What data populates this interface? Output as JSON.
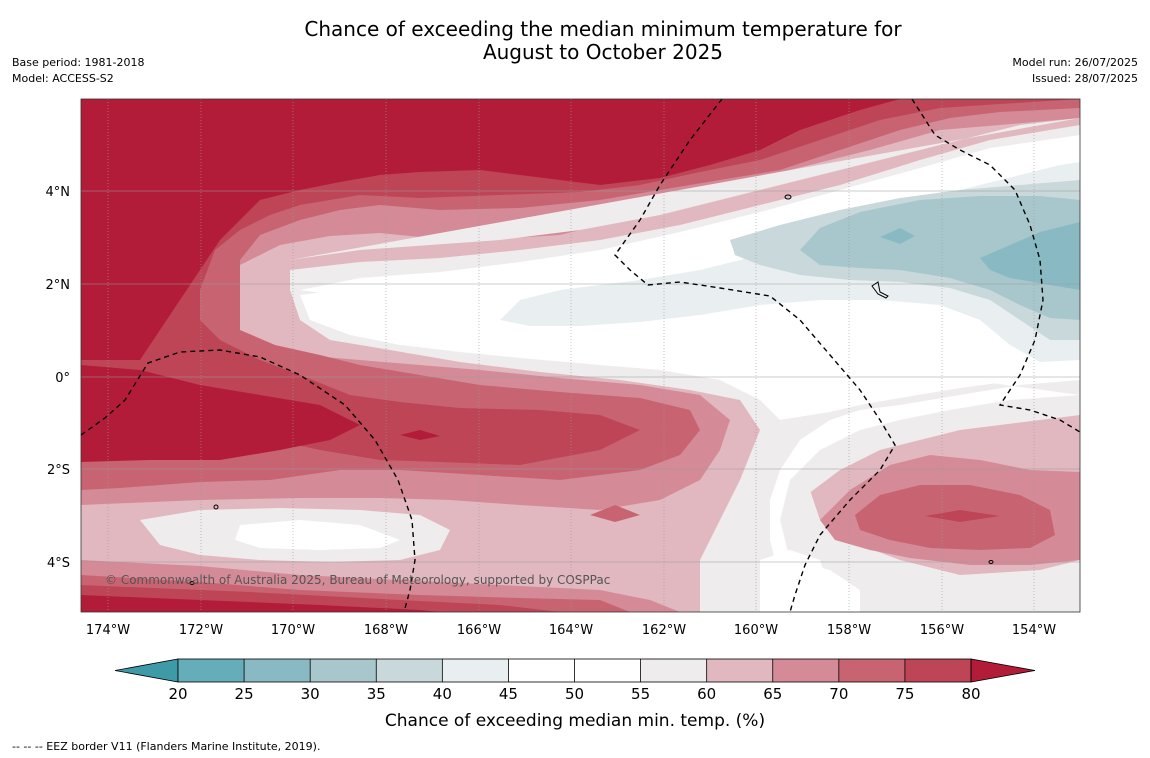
{
  "title_line1": "Chance of exceeding the median minimum temperature for",
  "title_line2": "August to October 2025",
  "meta_left": [
    "Base period: 1981-2018",
    "Model: ACCESS-S2"
  ],
  "meta_right": [
    "Model run: 26/07/2025",
    "Issued: 28/07/2025"
  ],
  "map": {
    "lat_labels": [
      "4°N",
      "2°N",
      "0°",
      "2°S",
      "4°S"
    ],
    "lon_labels": [
      "174°W",
      "172°W",
      "170°W",
      "168°W",
      "166°W",
      "164°W",
      "162°W",
      "160°W",
      "158°W",
      "156°W",
      "154°W"
    ],
    "copyright": "© Commonwealth of Australia 2025, Bureau of Meteorology, supported by COSPPac"
  },
  "legend": {
    "ticks": [
      "20",
      "25",
      "30",
      "35",
      "40",
      "45",
      "50",
      "55",
      "60",
      "65",
      "70",
      "75",
      "80"
    ],
    "colors": [
      "#3f9aa8",
      "#66adba",
      "#89bac3",
      "#a7c7cc",
      "#c8d8db",
      "#e9eff1",
      "#ffffff",
      "#ffffff",
      "#eeecec",
      "#e1b8bf",
      "#d58b97",
      "#c86472",
      "#be4555",
      "#b31c39"
    ],
    "label": "Chance of exceeding median min. temp. (%)"
  },
  "footnote": "--  --  -- EEZ border V11 (Flanders Marine Institute, 2019)."
}
